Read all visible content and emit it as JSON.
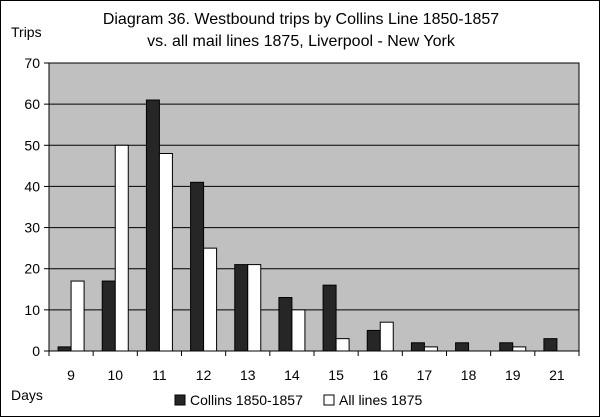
{
  "colors": {
    "plot_background": "#c0c0c0",
    "collins_fill": "#262626",
    "all_lines_fill": "#ffffff",
    "bar_stroke": "#000000",
    "gridline": "#000000"
  },
  "chart_data": {
    "type": "bar",
    "title": "Diagram 36. Westbound trips by Collins Line 1850-1857",
    "subtitle": "vs. all mail lines 1875, Liverpool - New York",
    "xlabel": "Days",
    "ylabel": "Trips",
    "categories": [
      "9",
      "10",
      "11",
      "12",
      "13",
      "14",
      "15",
      "16",
      "17",
      "18",
      "19",
      "21"
    ],
    "series": [
      {
        "name": "Collins 1850-1857",
        "values": [
          1,
          17,
          61,
          41,
          21,
          13,
          16,
          5,
          2,
          2,
          2,
          3
        ]
      },
      {
        "name": "All lines 1875",
        "values": [
          17,
          50,
          48,
          25,
          21,
          10,
          3,
          7,
          1,
          0,
          1,
          0
        ]
      }
    ],
    "ylim": [
      0,
      70
    ],
    "yticks": [
      0,
      10,
      20,
      30,
      40,
      50,
      60,
      70
    ],
    "grid": true,
    "legend_position": "bottom"
  }
}
